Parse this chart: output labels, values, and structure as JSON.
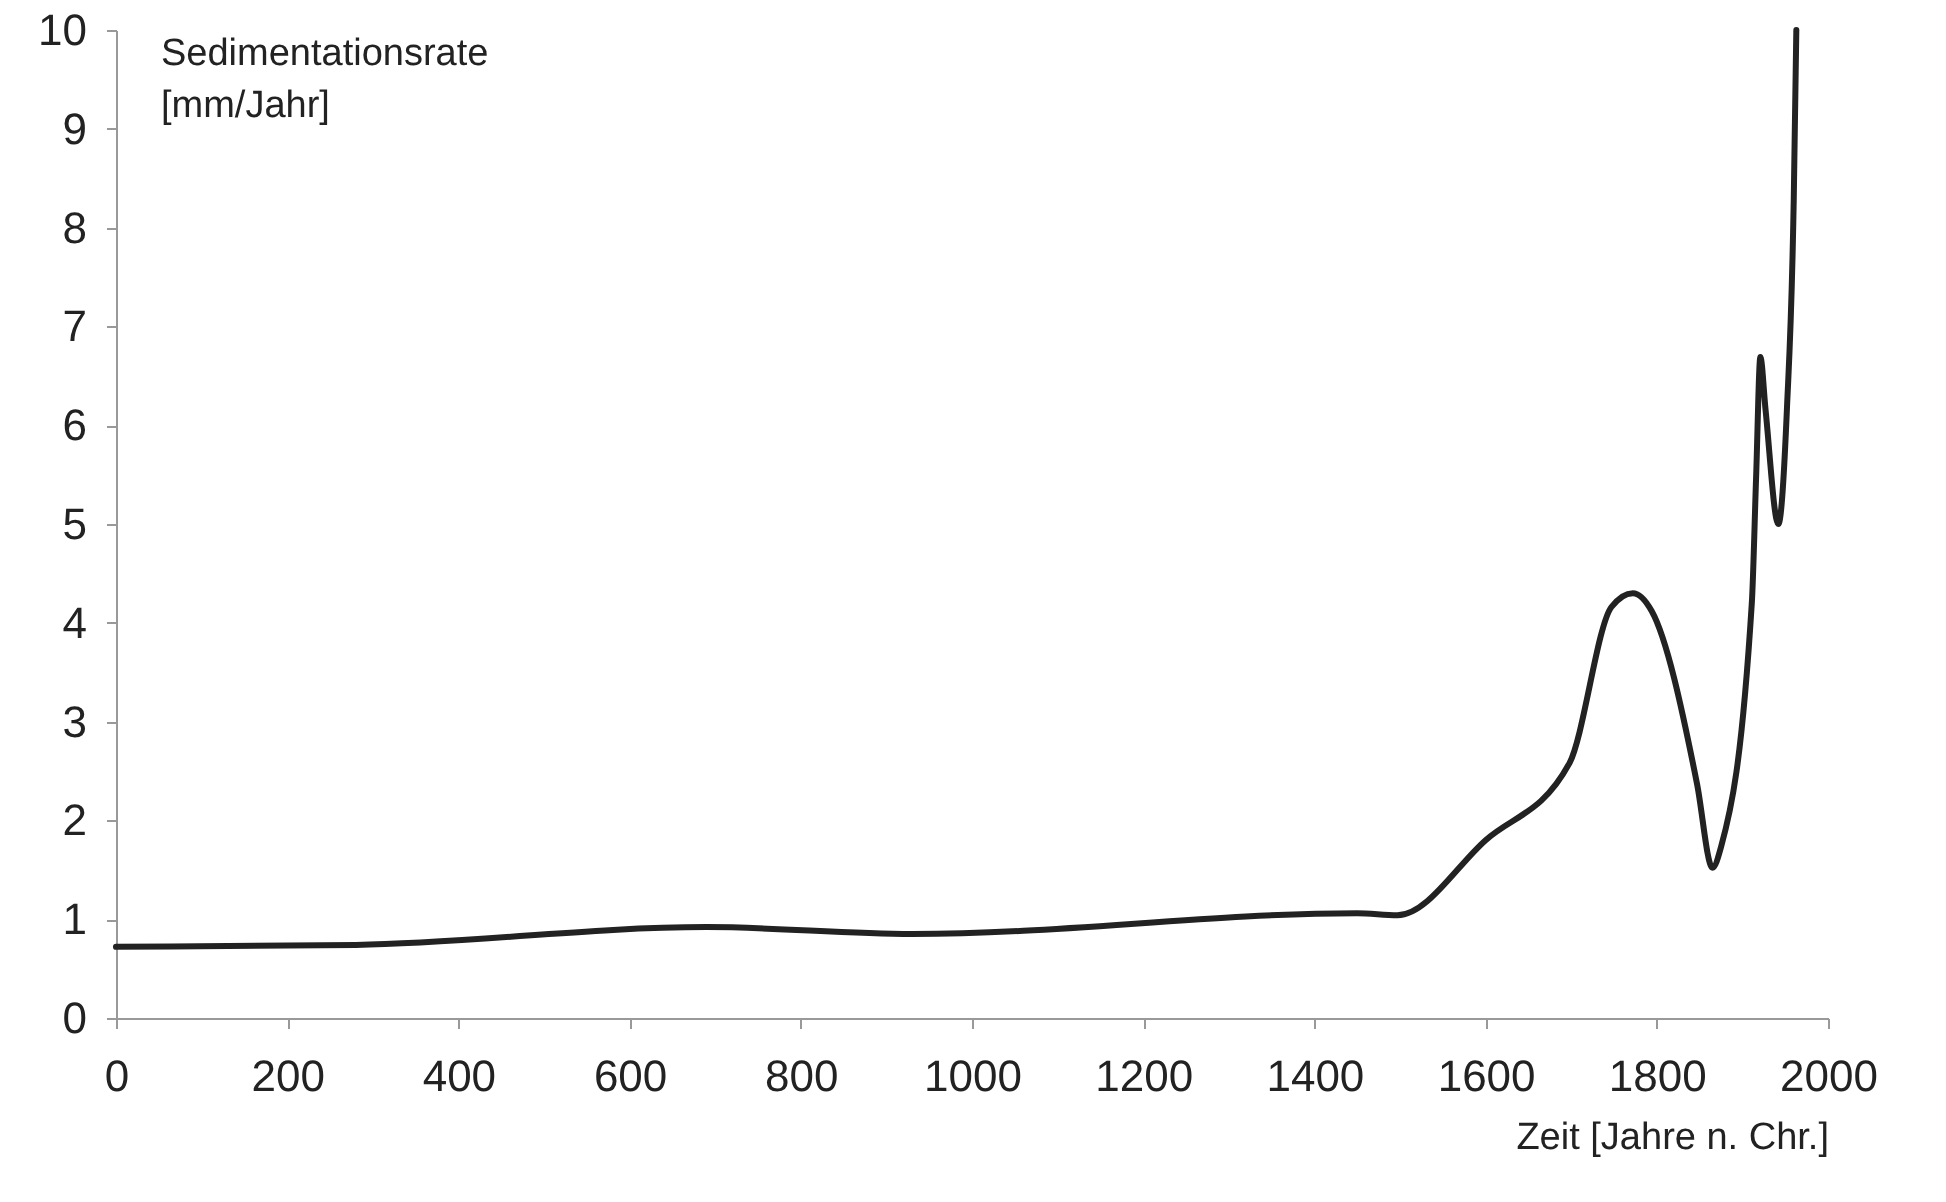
{
  "chart_data": {
    "type": "line",
    "xlabel": "Zeit [Jahre n. Chr.]",
    "ylabel": "Sedimentationsrate [mm/Jahr]",
    "xlim": [
      0,
      2000
    ],
    "xticks": [
      0,
      200,
      400,
      600,
      800,
      1000,
      1200,
      1400,
      1600,
      1800,
      2000
    ],
    "ylim": [
      0,
      10
    ],
    "yticks": [
      0,
      1,
      2,
      3,
      4,
      5,
      6,
      7,
      8,
      9,
      10
    ],
    "grid": false,
    "marker": "none",
    "line_style": "solid",
    "series": [
      {
        "color": "#222222",
        "x": [
          0,
          280,
          690,
          930,
          1450,
          1497,
          1600,
          1698,
          1747,
          1772,
          1794,
          1847,
          1865,
          1875,
          1911,
          1916,
          1921,
          1927,
          1942,
          1952,
          1960,
          1963
        ],
        "values": [
          0.72,
          0.74,
          0.92,
          0.85,
          1.06,
          1.04,
          1.8,
          2.58,
          4.16,
          4.3,
          4.12,
          2.37,
          1.52,
          1.73,
          4.2,
          5.47,
          6.69,
          6.16,
          5.0,
          6.16,
          8.29,
          10
        ]
      }
    ]
  }
}
